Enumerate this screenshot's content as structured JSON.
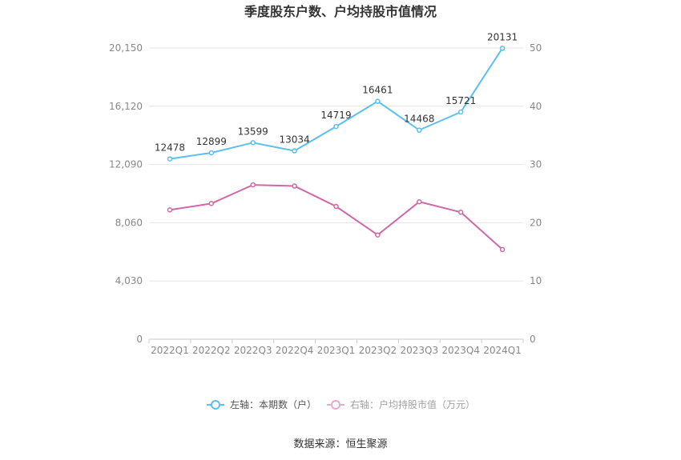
{
  "chart_data": {
    "type": "line",
    "title": "季度股东户数、户均持股市值情况",
    "categories": [
      "2022Q1",
      "2022Q2",
      "2022Q3",
      "2022Q4",
      "2023Q1",
      "2023Q2",
      "2023Q3",
      "2023Q4",
      "2024Q1"
    ],
    "left_axis": {
      "min": 0,
      "max": 20150,
      "ticks": [
        "0",
        "4,030",
        "8,060",
        "12,090",
        "16,120",
        "20,150"
      ]
    },
    "right_axis": {
      "min": 0,
      "max": 50,
      "ticks": [
        "0",
        "10",
        "20",
        "30",
        "40",
        "50"
      ]
    },
    "series": [
      {
        "name": "左轴：本期数（户）",
        "axis": "left",
        "color": "#5bc0eb",
        "values": [
          12478,
          12899,
          13599,
          13034,
          14719,
          16461,
          14468,
          15721,
          20131
        ],
        "labels": [
          "12478",
          "12899",
          "13599",
          "13034",
          "14719",
          "16461",
          "14468",
          "15721",
          "20131"
        ]
      },
      {
        "name": "右轴：户均持股市值（万元）",
        "axis": "right",
        "color": "#d067a7",
        "values": [
          22.2,
          23.3,
          26.5,
          26.3,
          22.8,
          17.9,
          23.6,
          21.8,
          15.4
        ]
      }
    ],
    "grid": true,
    "legend": "bottom"
  },
  "source": "数据来源：恒生聚源"
}
